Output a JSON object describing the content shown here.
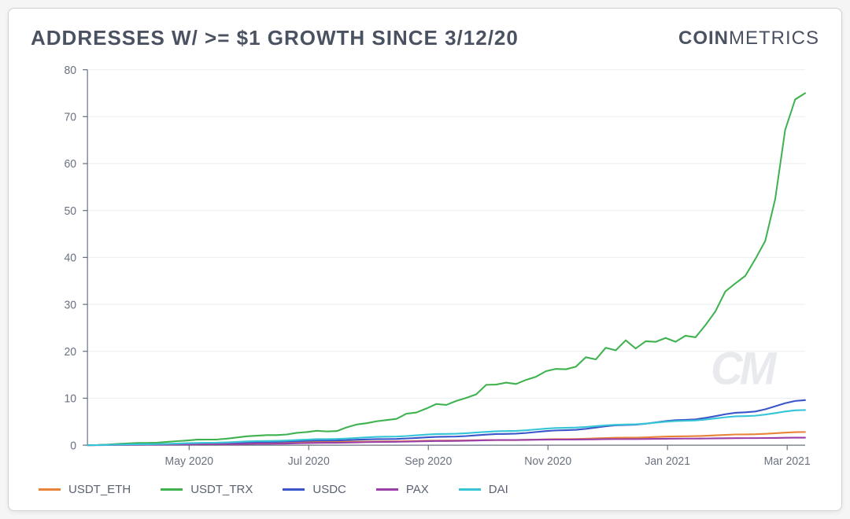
{
  "title": "ADDRESSES W/ >= $1 GROWTH SINCE 3/12/20",
  "brand_bold": "COIN",
  "brand_light": "METRICS",
  "watermark": "CM",
  "chart": {
    "type": "line",
    "background_color": "#ffffff",
    "grid_color": "#eceef2",
    "axis_color": "#6b7280",
    "title_fontsize": 26,
    "label_fontsize": 14,
    "ylim": [
      0,
      80
    ],
    "ytick_step": 10,
    "yticks": [
      0,
      10,
      20,
      30,
      40,
      50,
      60,
      70,
      80
    ],
    "x_index_range": [
      0,
      12
    ],
    "xticks": [
      {
        "pos": 1.7,
        "label": "May 2020"
      },
      {
        "pos": 3.7,
        "label": "Jul 2020"
      },
      {
        "pos": 5.7,
        "label": "Sep 2020"
      },
      {
        "pos": 7.7,
        "label": "Nov 2020"
      },
      {
        "pos": 9.7,
        "label": "Jan 2021"
      },
      {
        "pos": 11.7,
        "label": "Mar 2021"
      }
    ],
    "line_width": 2,
    "series": [
      {
        "name": "USDT_ETH",
        "color": "#e8833a",
        "values": [
          0,
          0.2,
          0.3,
          0.5,
          0.7,
          0.8,
          1.0,
          1.1,
          1.3,
          1.6,
          1.9,
          2.3,
          2.8
        ]
      },
      {
        "name": "USDT_TRX",
        "color": "#3fb24f",
        "values": [
          0,
          0.5,
          1.2,
          2.1,
          3.0,
          5.5,
          9.0,
          13.5,
          17.0,
          21.5,
          23.0,
          35.0,
          75.0
        ],
        "noise": 1.4
      },
      {
        "name": "USDC",
        "color": "#3a55c9",
        "values": [
          0,
          0.2,
          0.4,
          0.7,
          1.0,
          1.3,
          1.8,
          2.4,
          3.2,
          4.3,
          5.4,
          7.0,
          9.6
        ]
      },
      {
        "name": "PAX",
        "color": "#9b3fa8",
        "values": [
          0,
          0.1,
          0.2,
          0.3,
          0.5,
          0.7,
          0.9,
          1.1,
          1.2,
          1.3,
          1.4,
          1.5,
          1.6
        ]
      },
      {
        "name": "DAI",
        "color": "#35c5d6",
        "values": [
          0,
          0.2,
          0.5,
          0.9,
          1.3,
          1.8,
          2.4,
          3.0,
          3.7,
          4.4,
          5.2,
          6.2,
          7.5
        ]
      }
    ]
  }
}
